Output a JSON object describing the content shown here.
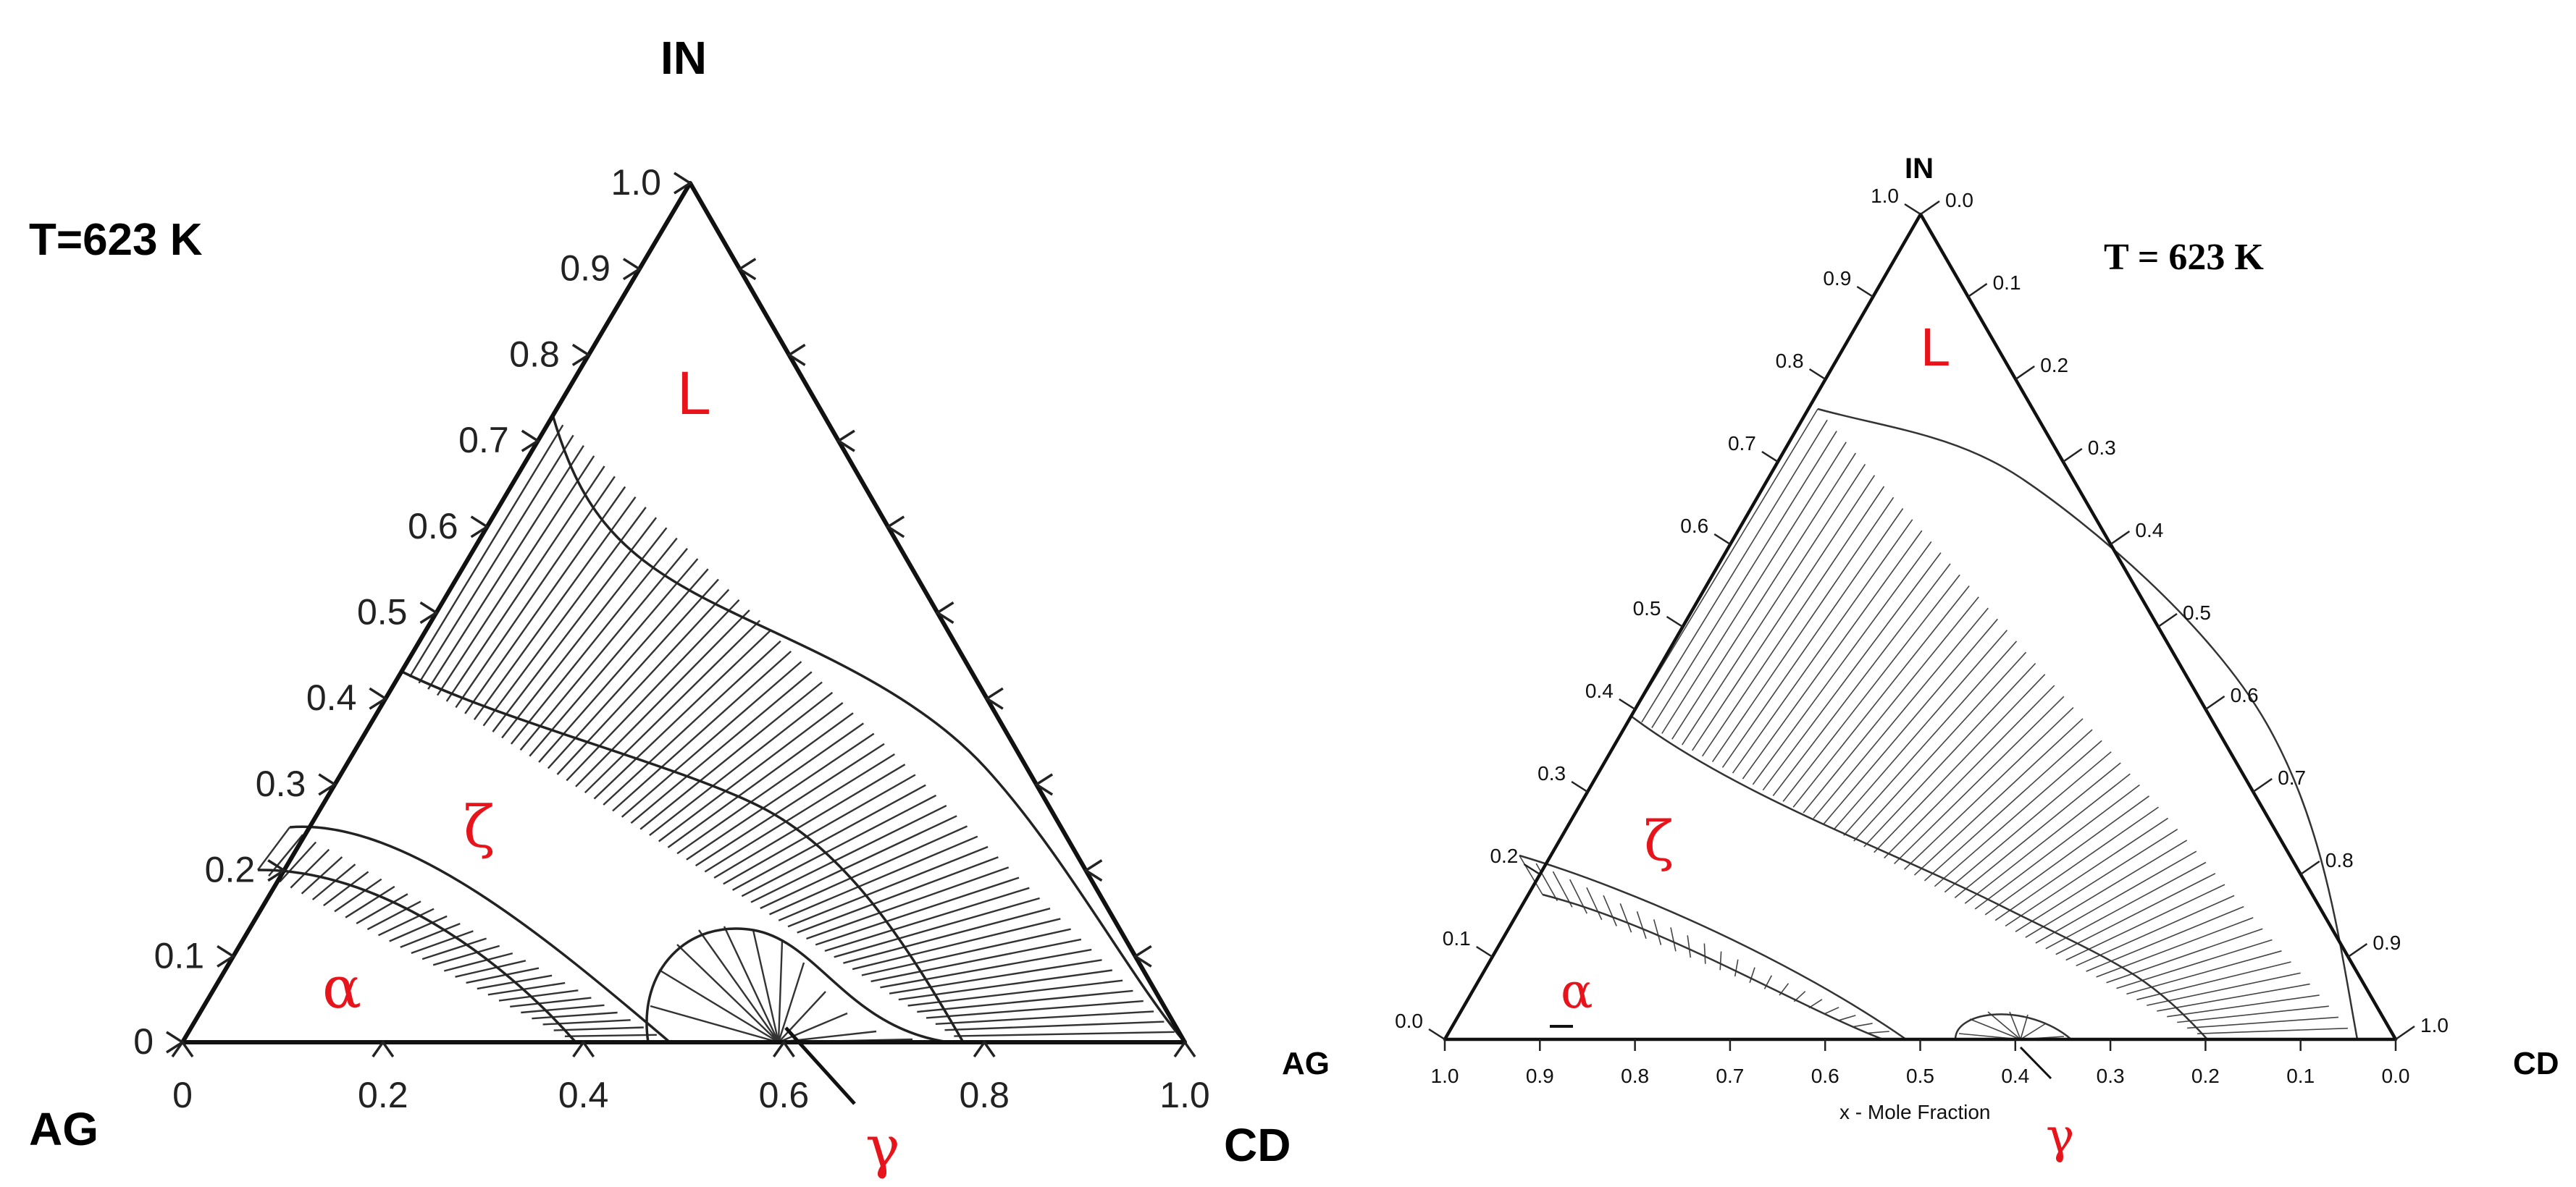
{
  "colors": {
    "phase_label": "#e8141b",
    "line": "#111111",
    "background": "#ffffff"
  },
  "left_diagram": {
    "temperature": "T=623 K",
    "vertex_top": "IN",
    "vertex_left": "AG",
    "vertex_right": "CD",
    "left_axis_ticks": [
      "0",
      "0.1",
      "0.2",
      "0.3",
      "0.4",
      "0.5",
      "0.6",
      "0.7",
      "0.8",
      "0.9",
      "1.0"
    ],
    "bottom_axis_ticks": [
      "0",
      "0.2",
      "0.4",
      "0.6",
      "0.8",
      "1.0"
    ],
    "phases": {
      "L": "L",
      "zeta": "ζ",
      "alpha": "α",
      "gamma": "γ"
    }
  },
  "right_diagram": {
    "temperature": "T = 623 K",
    "vertex_top": "IN",
    "vertex_left": "AG",
    "vertex_right": "CD",
    "left_axis_ticks": [
      "0.0",
      "0.1",
      "0.2",
      "0.3",
      "0.4",
      "0.5",
      "0.6",
      "0.7",
      "0.8",
      "0.9",
      "1.0"
    ],
    "right_axis_ticks": [
      "0.0",
      "0.1",
      "0.2",
      "0.3",
      "0.4",
      "0.5",
      "0.6",
      "0.7",
      "0.8",
      "0.9",
      "1.0"
    ],
    "bottom_axis_ticks": [
      "1.0",
      "0.9",
      "0.8",
      "0.7",
      "0.6",
      "0.5",
      "0.4",
      "0.3",
      "0.2",
      "0.1",
      "0.0"
    ],
    "x_axis_title": "x - Mole Fraction",
    "phases": {
      "L": "L",
      "zeta": "ζ",
      "alpha": "α",
      "gamma": "γ"
    }
  }
}
